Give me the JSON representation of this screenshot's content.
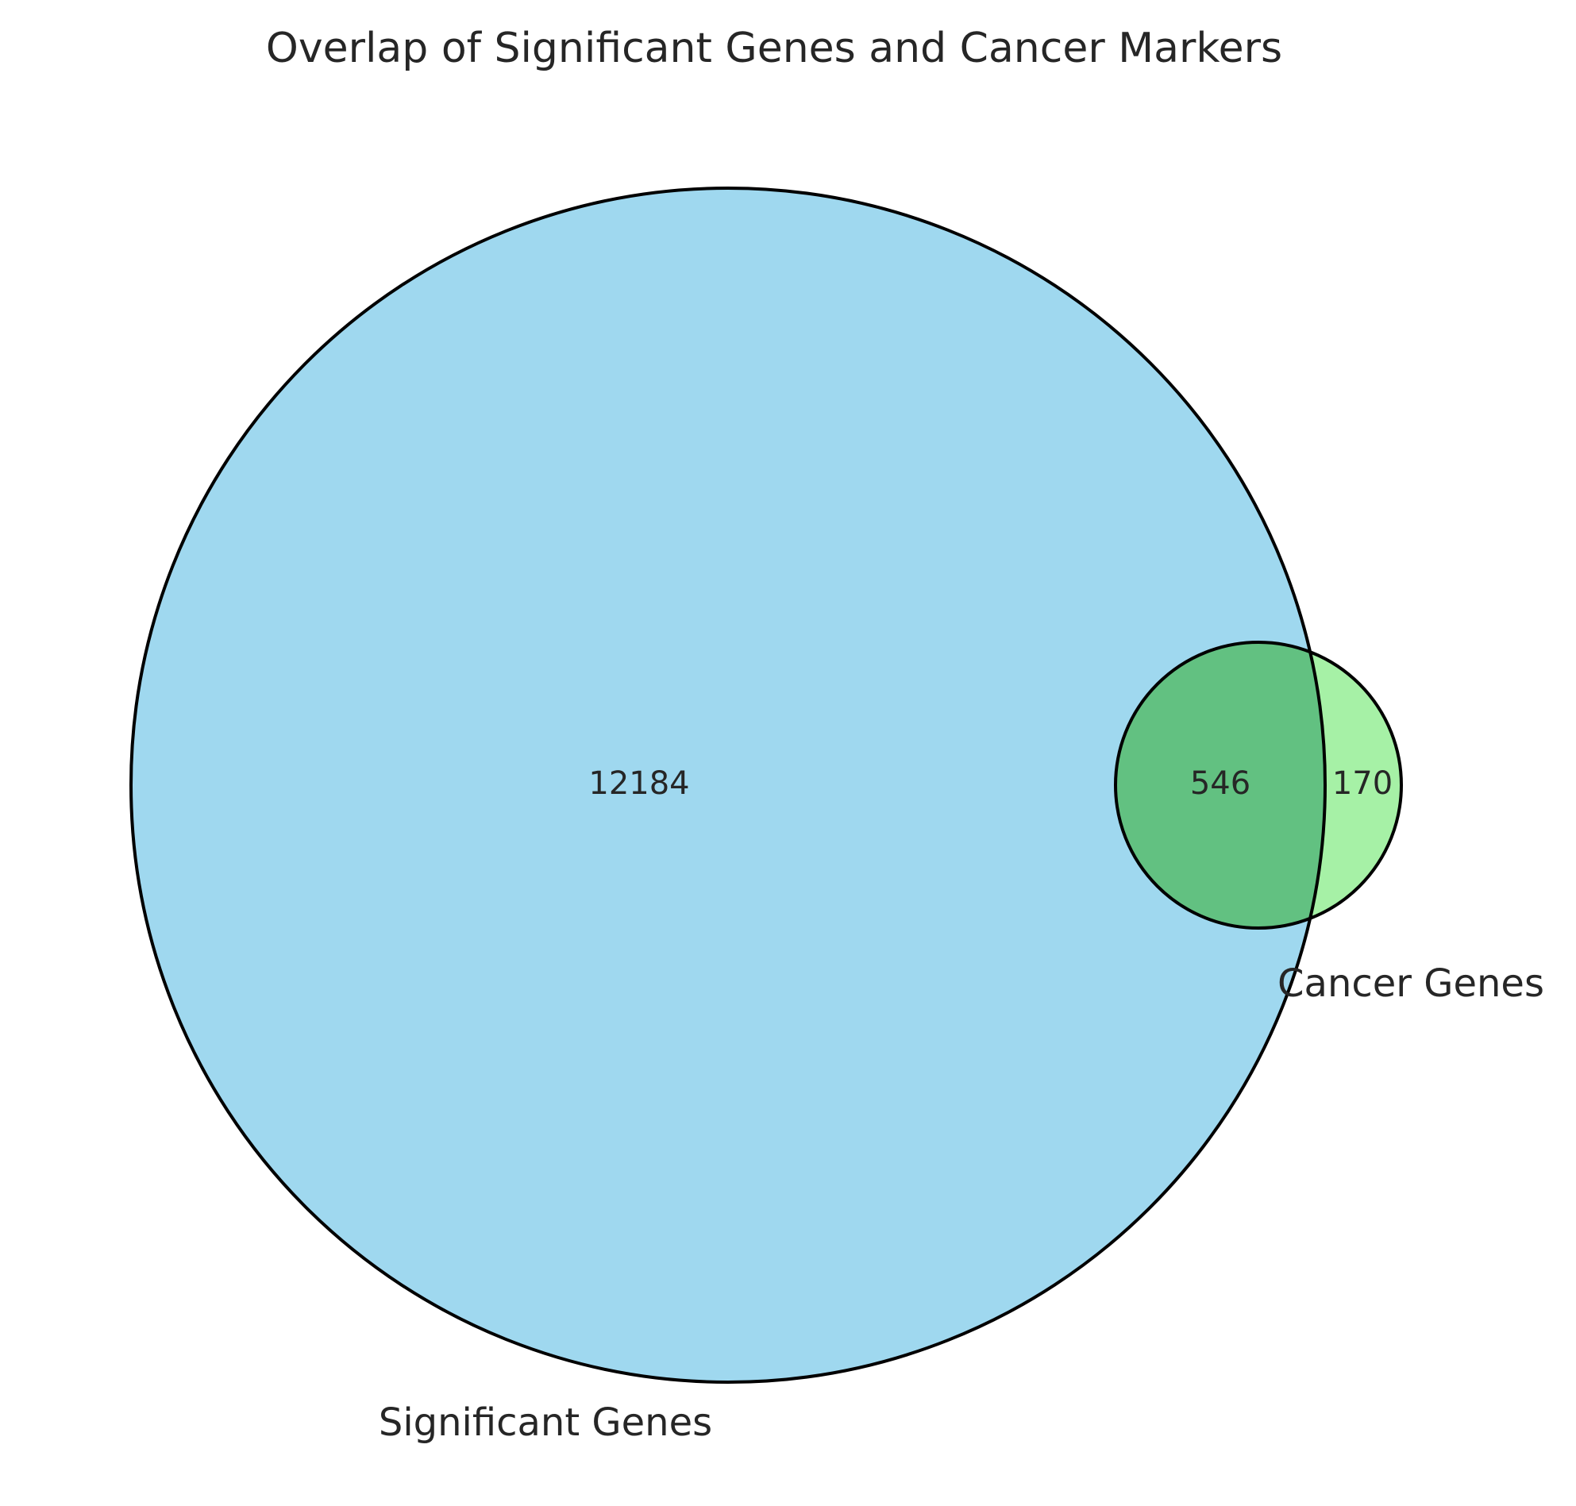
{
  "title": "Overlap of Significant Genes and Cancer Markers",
  "sets": {
    "a": {
      "label": "Significant Genes",
      "color": "#87CEEB"
    },
    "b": {
      "label": "Cancer Genes",
      "color": "#90EE90"
    },
    "overlap_color": "#5FBF7F",
    "outline_color": "#000000"
  },
  "regions": {
    "a_only": "12184",
    "b_only": "170",
    "a_and_b": "546"
  },
  "chart_data": {
    "type": "venn",
    "title": "Overlap of Significant Genes and Cancer Markers",
    "sets": [
      "Significant Genes",
      "Cancer Genes"
    ],
    "counts": {
      "Significant Genes only": 12184,
      "Cancer Genes only": 170,
      "Significant Genes & Cancer Genes": 546
    }
  }
}
